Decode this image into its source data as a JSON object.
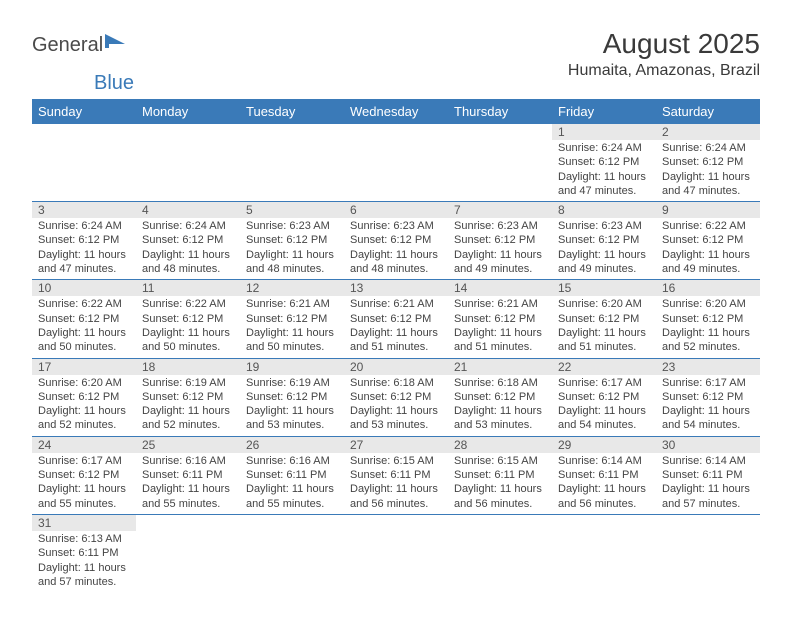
{
  "logo": {
    "part1": "General",
    "part2": "Blue"
  },
  "title": "August 2025",
  "location": "Humaita, Amazonas, Brazil",
  "colors": {
    "header_bg": "#3a7ab8",
    "header_text": "#ffffff",
    "daynum_bg": "#e8e8e8",
    "border": "#3a7ab8",
    "logo_primary": "#4a4a4a",
    "logo_accent": "#3a7ab8"
  },
  "weekdays": [
    "Sunday",
    "Monday",
    "Tuesday",
    "Wednesday",
    "Thursday",
    "Friday",
    "Saturday"
  ],
  "weeks": [
    [
      {
        "empty": true
      },
      {
        "empty": true
      },
      {
        "empty": true
      },
      {
        "empty": true
      },
      {
        "empty": true
      },
      {
        "day": "1",
        "sunrise": "6:24 AM",
        "sunset": "6:12 PM",
        "daylight": "11 hours and 47 minutes."
      },
      {
        "day": "2",
        "sunrise": "6:24 AM",
        "sunset": "6:12 PM",
        "daylight": "11 hours and 47 minutes."
      }
    ],
    [
      {
        "day": "3",
        "sunrise": "6:24 AM",
        "sunset": "6:12 PM",
        "daylight": "11 hours and 47 minutes."
      },
      {
        "day": "4",
        "sunrise": "6:24 AM",
        "sunset": "6:12 PM",
        "daylight": "11 hours and 48 minutes."
      },
      {
        "day": "5",
        "sunrise": "6:23 AM",
        "sunset": "6:12 PM",
        "daylight": "11 hours and 48 minutes."
      },
      {
        "day": "6",
        "sunrise": "6:23 AM",
        "sunset": "6:12 PM",
        "daylight": "11 hours and 48 minutes."
      },
      {
        "day": "7",
        "sunrise": "6:23 AM",
        "sunset": "6:12 PM",
        "daylight": "11 hours and 49 minutes."
      },
      {
        "day": "8",
        "sunrise": "6:23 AM",
        "sunset": "6:12 PM",
        "daylight": "11 hours and 49 minutes."
      },
      {
        "day": "9",
        "sunrise": "6:22 AM",
        "sunset": "6:12 PM",
        "daylight": "11 hours and 49 minutes."
      }
    ],
    [
      {
        "day": "10",
        "sunrise": "6:22 AM",
        "sunset": "6:12 PM",
        "daylight": "11 hours and 50 minutes."
      },
      {
        "day": "11",
        "sunrise": "6:22 AM",
        "sunset": "6:12 PM",
        "daylight": "11 hours and 50 minutes."
      },
      {
        "day": "12",
        "sunrise": "6:21 AM",
        "sunset": "6:12 PM",
        "daylight": "11 hours and 50 minutes."
      },
      {
        "day": "13",
        "sunrise": "6:21 AM",
        "sunset": "6:12 PM",
        "daylight": "11 hours and 51 minutes."
      },
      {
        "day": "14",
        "sunrise": "6:21 AM",
        "sunset": "6:12 PM",
        "daylight": "11 hours and 51 minutes."
      },
      {
        "day": "15",
        "sunrise": "6:20 AM",
        "sunset": "6:12 PM",
        "daylight": "11 hours and 51 minutes."
      },
      {
        "day": "16",
        "sunrise": "6:20 AM",
        "sunset": "6:12 PM",
        "daylight": "11 hours and 52 minutes."
      }
    ],
    [
      {
        "day": "17",
        "sunrise": "6:20 AM",
        "sunset": "6:12 PM",
        "daylight": "11 hours and 52 minutes."
      },
      {
        "day": "18",
        "sunrise": "6:19 AM",
        "sunset": "6:12 PM",
        "daylight": "11 hours and 52 minutes."
      },
      {
        "day": "19",
        "sunrise": "6:19 AM",
        "sunset": "6:12 PM",
        "daylight": "11 hours and 53 minutes."
      },
      {
        "day": "20",
        "sunrise": "6:18 AM",
        "sunset": "6:12 PM",
        "daylight": "11 hours and 53 minutes."
      },
      {
        "day": "21",
        "sunrise": "6:18 AM",
        "sunset": "6:12 PM",
        "daylight": "11 hours and 53 minutes."
      },
      {
        "day": "22",
        "sunrise": "6:17 AM",
        "sunset": "6:12 PM",
        "daylight": "11 hours and 54 minutes."
      },
      {
        "day": "23",
        "sunrise": "6:17 AM",
        "sunset": "6:12 PM",
        "daylight": "11 hours and 54 minutes."
      }
    ],
    [
      {
        "day": "24",
        "sunrise": "6:17 AM",
        "sunset": "6:12 PM",
        "daylight": "11 hours and 55 minutes."
      },
      {
        "day": "25",
        "sunrise": "6:16 AM",
        "sunset": "6:11 PM",
        "daylight": "11 hours and 55 minutes."
      },
      {
        "day": "26",
        "sunrise": "6:16 AM",
        "sunset": "6:11 PM",
        "daylight": "11 hours and 55 minutes."
      },
      {
        "day": "27",
        "sunrise": "6:15 AM",
        "sunset": "6:11 PM",
        "daylight": "11 hours and 56 minutes."
      },
      {
        "day": "28",
        "sunrise": "6:15 AM",
        "sunset": "6:11 PM",
        "daylight": "11 hours and 56 minutes."
      },
      {
        "day": "29",
        "sunrise": "6:14 AM",
        "sunset": "6:11 PM",
        "daylight": "11 hours and 56 minutes."
      },
      {
        "day": "30",
        "sunrise": "6:14 AM",
        "sunset": "6:11 PM",
        "daylight": "11 hours and 57 minutes."
      }
    ],
    [
      {
        "day": "31",
        "sunrise": "6:13 AM",
        "sunset": "6:11 PM",
        "daylight": "11 hours and 57 minutes."
      },
      {
        "empty": true
      },
      {
        "empty": true
      },
      {
        "empty": true
      },
      {
        "empty": true
      },
      {
        "empty": true
      },
      {
        "empty": true
      }
    ]
  ],
  "labels": {
    "sunrise": "Sunrise:",
    "sunset": "Sunset:",
    "daylight": "Daylight:"
  }
}
